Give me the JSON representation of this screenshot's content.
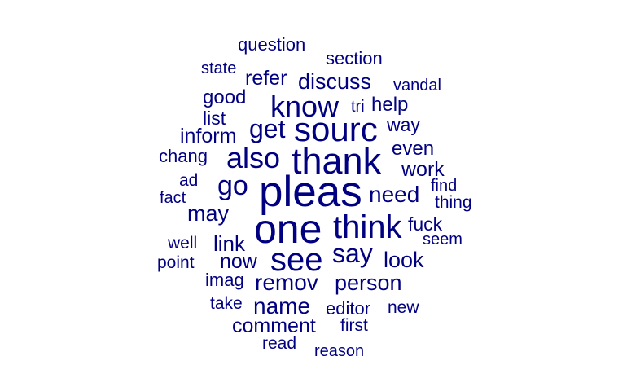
{
  "color": "#000080",
  "words": [
    "pleas",
    "one",
    "sourc",
    "thank",
    "think",
    "see",
    "know",
    "also",
    "get",
    "go",
    "say",
    "need",
    "work",
    "even",
    "link",
    "remov",
    "person",
    "look",
    "name",
    "may",
    "discuss",
    "help",
    "inform",
    "refer",
    "way",
    "now",
    "comment",
    "fuck",
    "good",
    "list",
    "chang",
    "section",
    "editor",
    "question",
    "imag",
    "vandal",
    "thing",
    "seem",
    "state",
    "tri",
    "find",
    "ad",
    "well",
    "fact",
    "point",
    "take",
    "new",
    "first",
    "read",
    "reason"
  ]
}
